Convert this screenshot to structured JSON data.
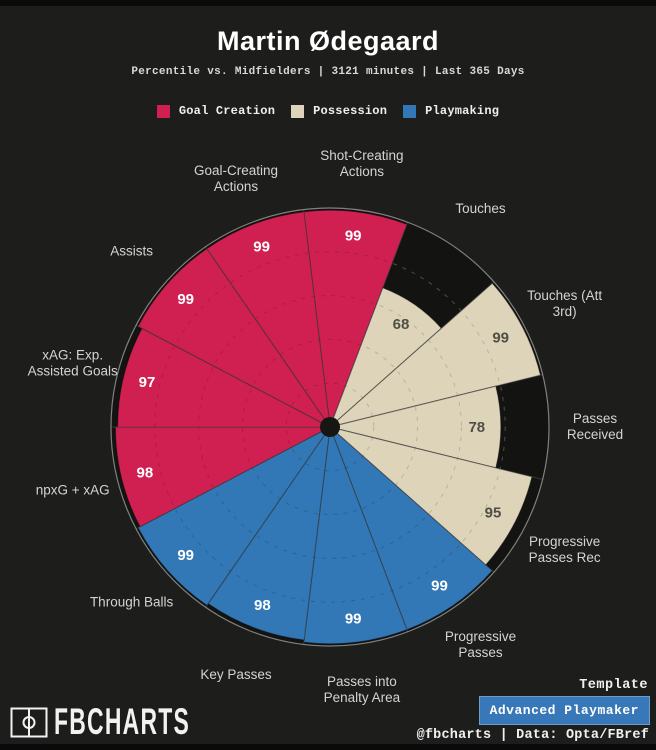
{
  "header": {
    "title": "Martin Ødegaard",
    "subtitle": "Percentile vs. Midfielders | 3121 minutes | Last 365 Days"
  },
  "legend": [
    {
      "id": "goal_creation",
      "label": "Goal Creation"
    },
    {
      "id": "possession",
      "label": "Possession"
    },
    {
      "id": "playmaking",
      "label": "Playmaking"
    }
  ],
  "chart_data": {
    "type": "pie",
    "variant": "percentile-pizza",
    "title": "Martin Ødegaard",
    "subtitle": "Percentile vs. Midfielders | 3121 minutes | Last 365 Days",
    "max": 100,
    "ring_percentiles": [
      20,
      40,
      60,
      80,
      100
    ],
    "start_angle_deg": -6.923,
    "categories": [
      "Shot-Creating Actions",
      "Touches",
      "Touches (Att 3rd)",
      "Passes Received",
      "Progressive Passes Rec",
      "Progressive Passes",
      "Passes into Penalty Area",
      "Key Passes",
      "Through Balls",
      "npxG + xAG",
      "xAG: Exp. Assisted Goals",
      "Assists",
      "Goal-Creating Actions"
    ],
    "values": [
      99,
      68,
      99,
      78,
      95,
      99,
      99,
      98,
      99,
      98,
      97,
      99,
      99
    ],
    "groups": [
      "goal_creation",
      "possession",
      "possession",
      "possession",
      "possession",
      "playmaking",
      "playmaking",
      "playmaking",
      "playmaking",
      "goal_creation",
      "goal_creation",
      "goal_creation",
      "goal_creation"
    ],
    "label_lines": [
      [
        "Shot-Creating",
        "Actions"
      ],
      [
        "Touches"
      ],
      [
        "Touches (Att",
        "3rd)"
      ],
      [
        "Passes",
        "Received"
      ],
      [
        "Progressive",
        "Passes Rec"
      ],
      [
        "Progressive",
        "Passes"
      ],
      [
        "Passes into",
        "Penalty Area"
      ],
      [
        "Key Passes"
      ],
      [
        "Through Balls"
      ],
      [
        "npxG + xAG"
      ],
      [
        "xAG: Exp.",
        "Assisted Goals"
      ],
      [
        "Assists"
      ],
      [
        "Goal-Creating",
        "Actions"
      ]
    ]
  },
  "colors": {
    "background": "#1d1d1c",
    "band": "#0a0a0a",
    "chart_bg": "#131312",
    "goal_creation": "#d02051",
    "possession": "#ddd4ba",
    "playmaking": "#3277b6",
    "label_text": "#d4d4d4",
    "value_on_dark": "#ffffff",
    "value_on_light": "#514f45",
    "button_bg": "#3878b8",
    "button_text": "#ffffff"
  },
  "footer": {
    "brand": "FBCHARTS",
    "template_label": "Template",
    "template_value": "Advanced Playmaker",
    "credit": "@fbcharts | Data: Opta/FBref"
  }
}
